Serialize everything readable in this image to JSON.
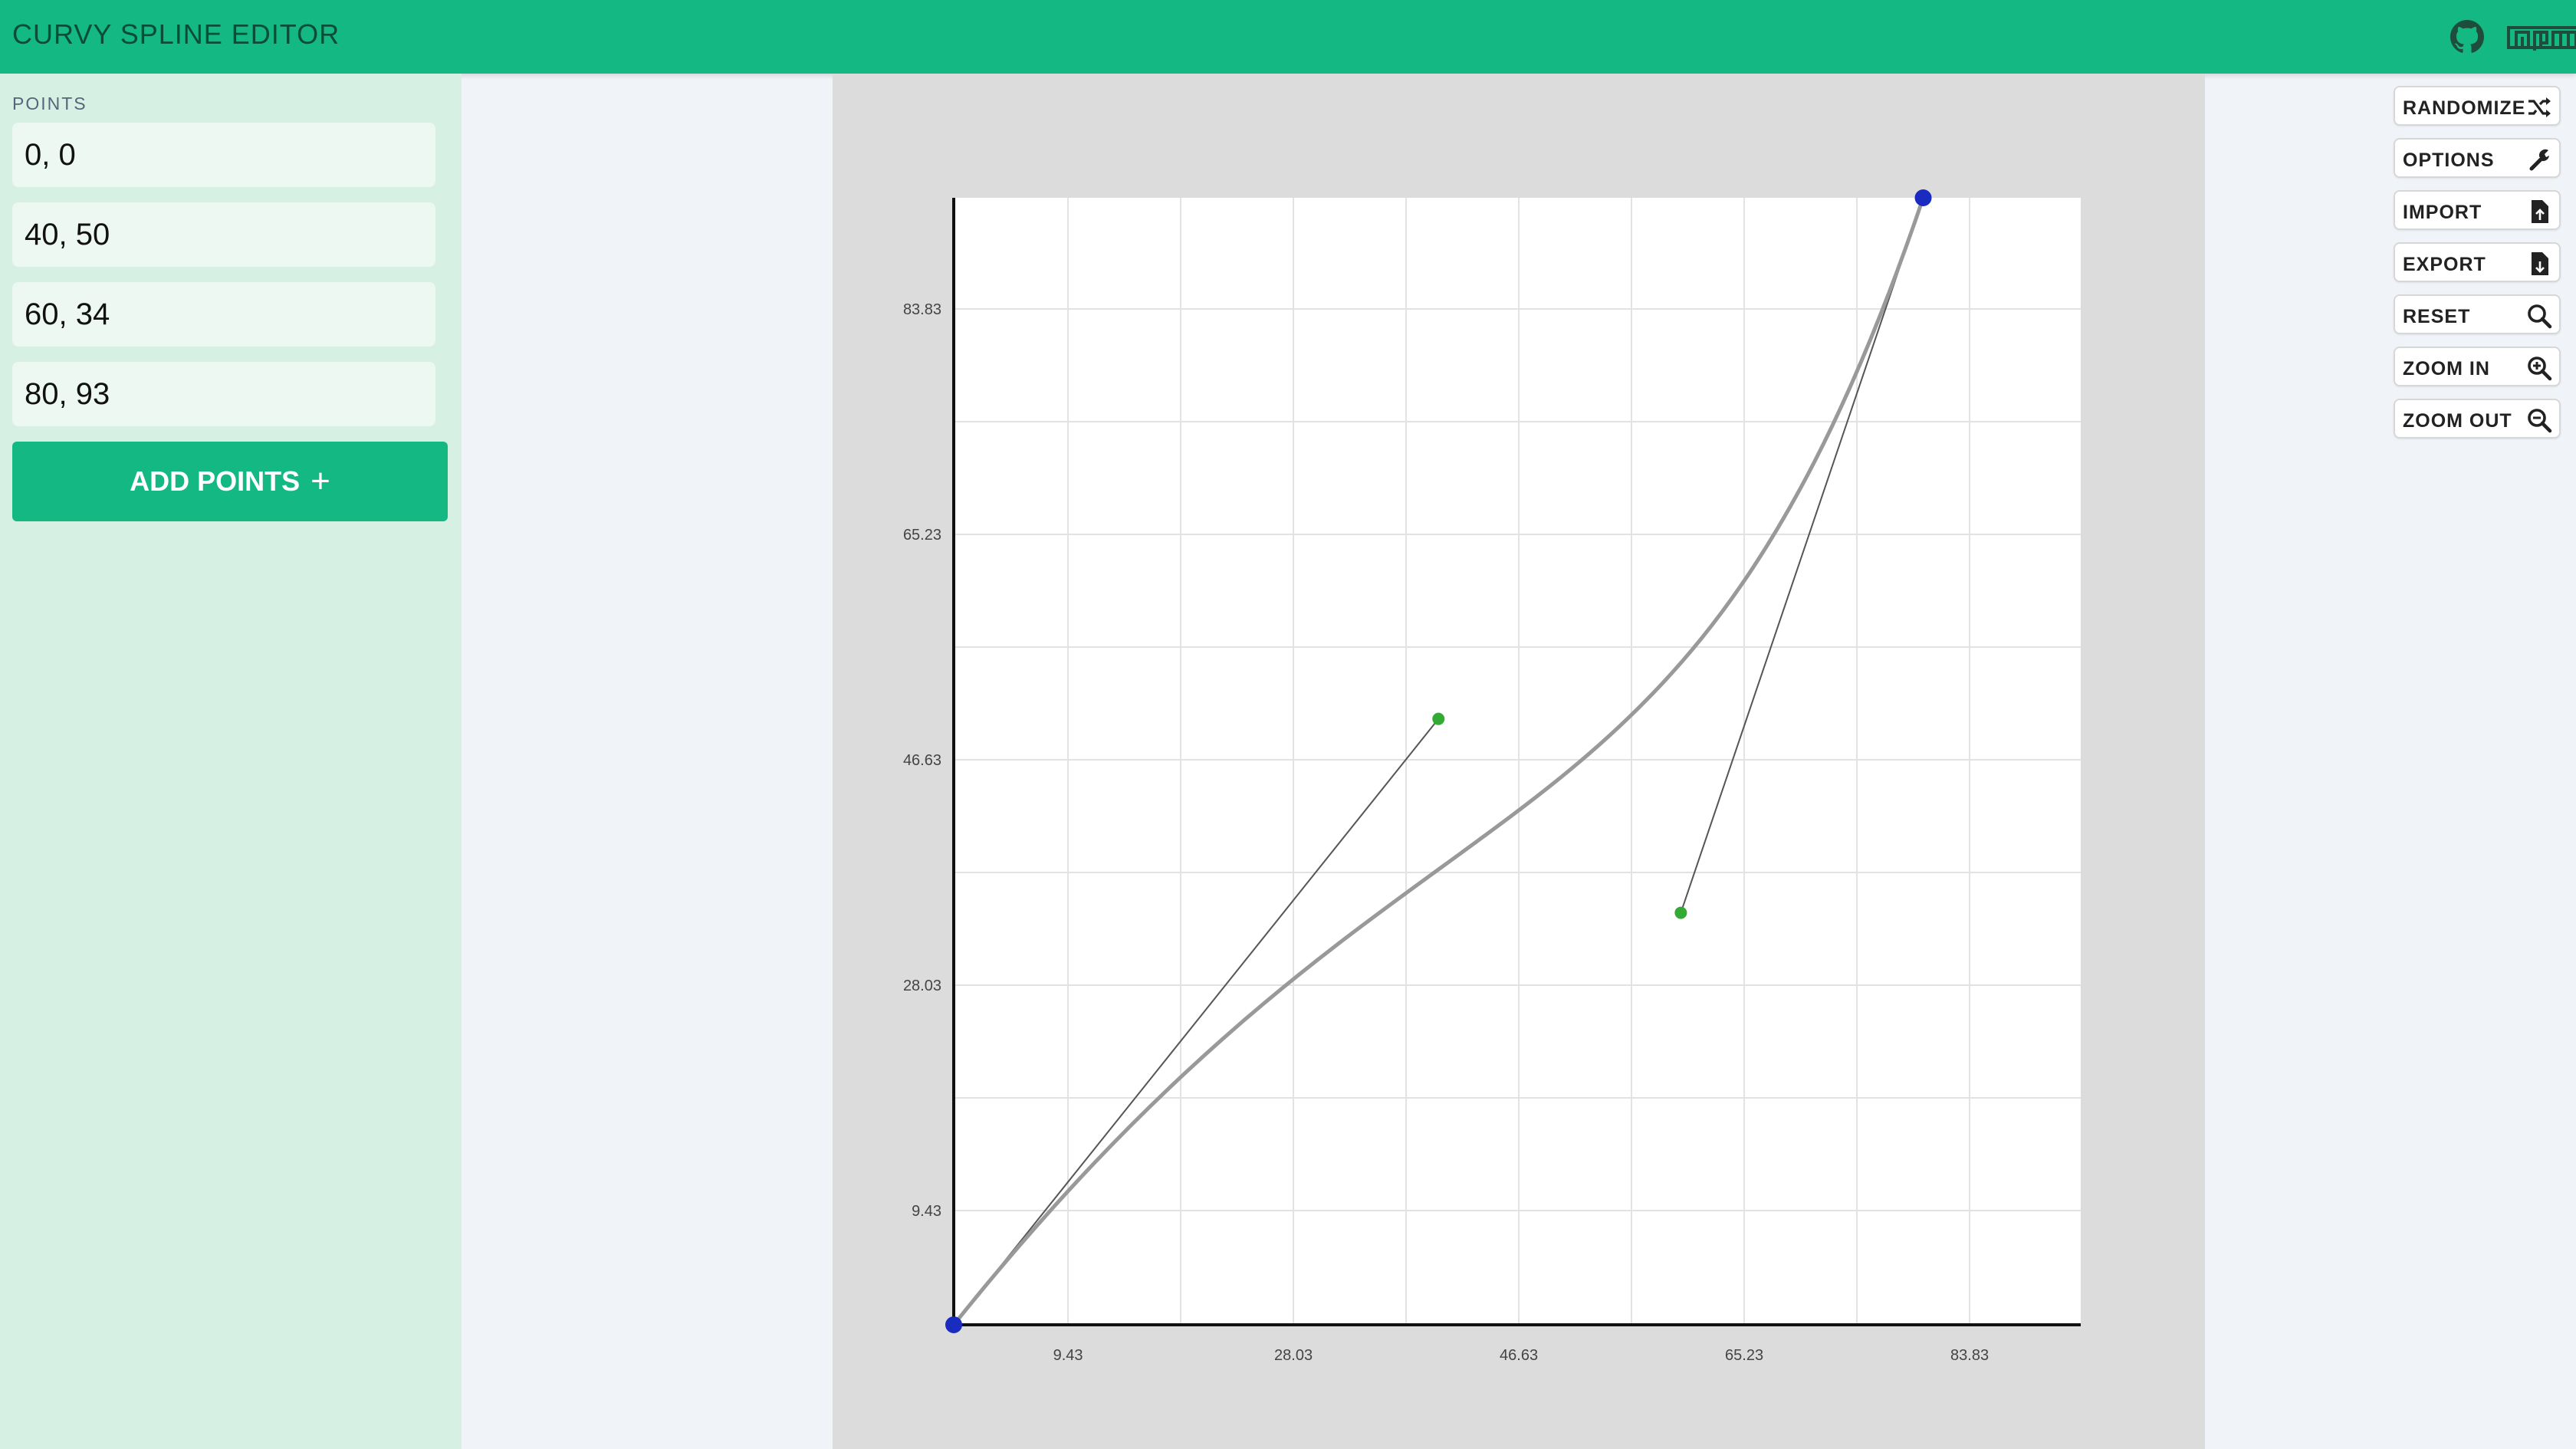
{
  "app": {
    "title": "CURVY SPLINE EDITOR"
  },
  "header": {
    "icons": [
      "github-icon",
      "npm-icon"
    ]
  },
  "colors": {
    "accent": "#14b883",
    "sidebar_bg": "#d6f1e4",
    "canvas_bg": "#dcdcdc",
    "anchor_point": "#1a2bbf",
    "control_point": "#33aa33",
    "curve": "#999999"
  },
  "sidebar": {
    "section_title": "POINTS",
    "points": [
      "0, 0",
      "40, 50",
      "60, 34",
      "80, 93"
    ],
    "add_button_label": "ADD POINTS"
  },
  "toolbar": {
    "buttons": [
      {
        "label": "RANDOMIZE",
        "icon": "shuffle-icon"
      },
      {
        "label": "OPTIONS",
        "icon": "wrench-icon"
      },
      {
        "label": "IMPORT",
        "icon": "file-import-icon"
      },
      {
        "label": "EXPORT",
        "icon": "file-export-icon"
      },
      {
        "label": "RESET",
        "icon": "search-icon"
      },
      {
        "label": "ZOOM IN",
        "icon": "zoom-in-icon"
      },
      {
        "label": "ZOOM OUT",
        "icon": "zoom-out-icon"
      }
    ]
  },
  "chart_data": {
    "type": "line",
    "x_ticks": [
      "9.43",
      "28.03",
      "46.63",
      "65.23",
      "83.83"
    ],
    "y_ticks": [
      "9.43",
      "28.03",
      "46.63",
      "65.23",
      "83.83"
    ],
    "axis_range": {
      "x": [
        0,
        93
      ],
      "y": [
        0,
        93
      ]
    },
    "grid": true,
    "anchor_points": [
      {
        "x": 0,
        "y": 0
      },
      {
        "x": 80,
        "y": 93
      }
    ],
    "control_points": [
      {
        "x": 40,
        "y": 50
      },
      {
        "x": 60,
        "y": 34
      }
    ],
    "curve": {
      "type": "cubic-bezier",
      "points": [
        [
          0,
          0
        ],
        [
          40,
          50
        ],
        [
          60,
          34
        ],
        [
          80,
          93
        ]
      ]
    }
  }
}
